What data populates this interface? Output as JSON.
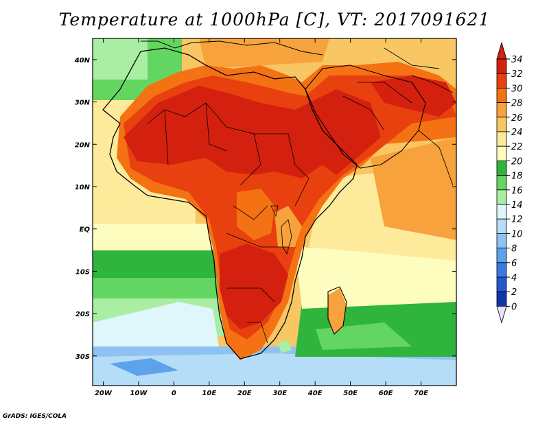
{
  "title": "Temperature at 1000hPa [C], VT: 2017091621",
  "credit": "GrADS: IGES/COLA",
  "map": {
    "lon_range": [
      -23,
      80
    ],
    "lat_range": [
      -37,
      45
    ],
    "lon_ticks": [
      "20W",
      "10W",
      "0",
      "10E",
      "20E",
      "30E",
      "40E",
      "50E",
      "60E",
      "70E"
    ],
    "lat_ticks": [
      "40N",
      "30N",
      "20N",
      "10N",
      "EQ",
      "10S",
      "20S",
      "30S"
    ]
  },
  "colorbar": {
    "labels": [
      "34",
      "32",
      "30",
      "28",
      "26",
      "24",
      "22",
      "20",
      "18",
      "16",
      "14",
      "12",
      "10",
      "8",
      "6",
      "4",
      "2",
      "0"
    ],
    "colors": {
      "c34": "#d4200e",
      "c32": "#e9400f",
      "c30": "#f47213",
      "c28": "#f7a23c",
      "c26": "#f8c662",
      "c24": "#fdea9a",
      "c22": "#fdfdbf",
      "c20": "#2fb43c",
      "c18": "#63d561",
      "c16": "#a9eea2",
      "c14": "#dff6fa",
      "c12": "#b6ddf7",
      "c10": "#8ec2f1",
      "c8": "#5fa2ec",
      "c6": "#3a7be2",
      "c4": "#2459cc",
      "c2": "#1333a8",
      "c0": "#091f7d"
    }
  }
}
